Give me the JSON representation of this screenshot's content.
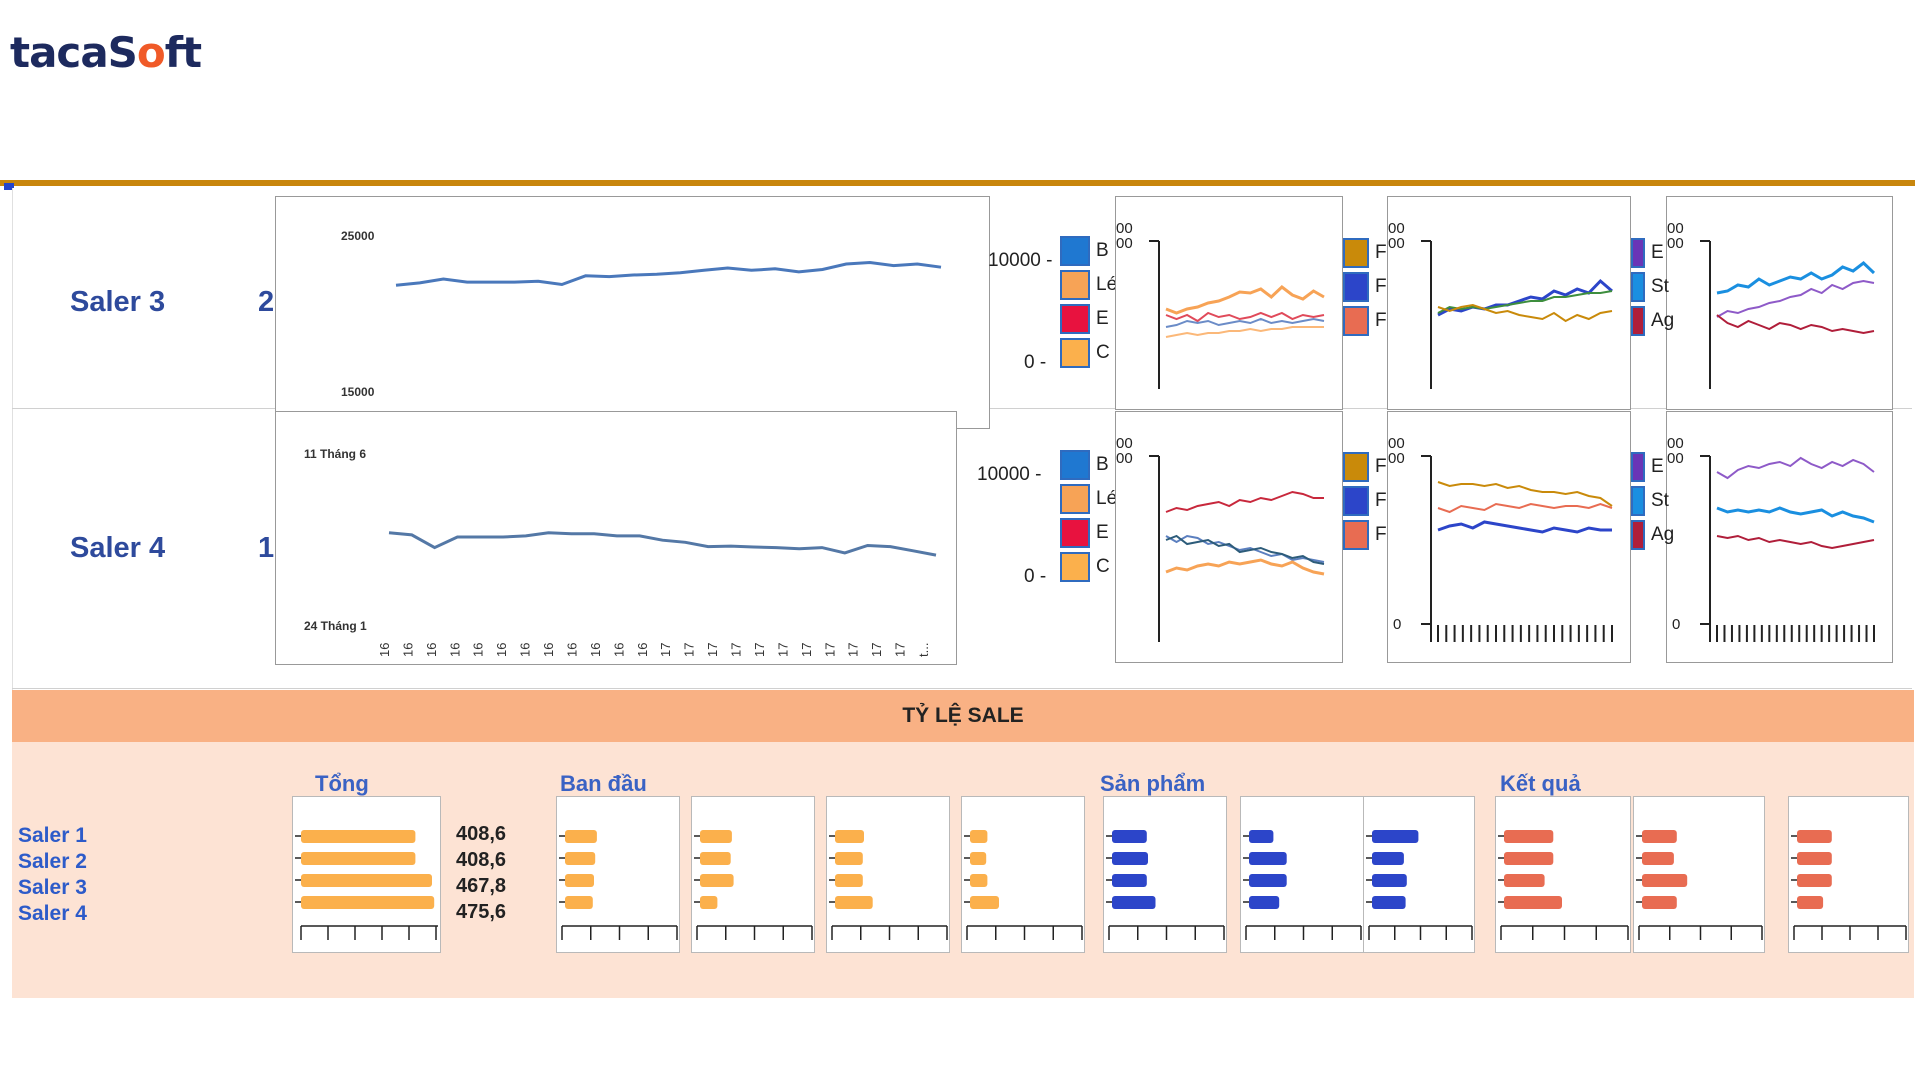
{
  "brand": {
    "name_part1": "tacaS",
    "name_o": "o",
    "name_part2": "ft"
  },
  "rows": [
    {
      "label": "Saler 3",
      "digit": "2"
    },
    {
      "label": "Saler 4",
      "digit": "1"
    }
  ],
  "line_chart_1": {
    "y_top_label": "25000",
    "y_bottom_label": "15000",
    "series": [
      21800,
      21950,
      22200,
      22000,
      22000,
      22000,
      22050,
      21850,
      22400,
      22350,
      22450,
      22500,
      22600,
      22750,
      22900,
      22750,
      22850,
      22650,
      22800,
      23150,
      23250,
      23050,
      23150,
      22950
    ]
  },
  "line_chart_2": {
    "y_top_label": "11 Tháng 6",
    "y_bottom_label": "24 Tháng 1",
    "x_ticks": [
      "16",
      "16",
      "16",
      "16",
      "16",
      "16",
      "16",
      "16",
      "16",
      "16",
      "16",
      "16",
      "17",
      "17",
      "17",
      "17",
      "17",
      "17",
      "17",
      "17",
      "17",
      "17",
      "17",
      "t..."
    ],
    "series": [
      62,
      61,
      55,
      60,
      60,
      60,
      60.5,
      62,
      61.5,
      61.5,
      60.5,
      60.5,
      58.5,
      57.5,
      55.5,
      55.7,
      55.3,
      55,
      54.5,
      55,
      52.5,
      56,
      55.5,
      53.5,
      51.5
    ]
  },
  "legend_1": {
    "axis_top": "10000 -",
    "axis_bottom": "0 -",
    "items": [
      {
        "text": "B",
        "color": "#1f78d1"
      },
      {
        "text": "Lé",
        "color": "#f7a356"
      },
      {
        "text": "E",
        "color": "#e8123f"
      },
      {
        "text": "C",
        "color": "#fbb04c"
      }
    ]
  },
  "legend_2": {
    "axis_top": "10000 -",
    "axis_bottom": "0 -",
    "items": [
      {
        "text": "B",
        "color": "#1f78d1"
      },
      {
        "text": "Lé",
        "color": "#f7a356"
      },
      {
        "text": "E",
        "color": "#e8123f"
      },
      {
        "text": "C",
        "color": "#fbb04c"
      }
    ]
  },
  "mini_legend_p": {
    "items": [
      {
        "text": "F",
        "color": "#c98a0a"
      },
      {
        "text": "F",
        "color": "#2c45c9"
      },
      {
        "text": "F",
        "color": "#e86c52"
      }
    ]
  },
  "mini_legend_e": {
    "items": [
      {
        "text": "E",
        "color": "#6a35b6"
      },
      {
        "text": "St",
        "color": "#1a8fe0"
      },
      {
        "text": "Ag",
        "color": "#b01e3a"
      }
    ]
  },
  "small_axis": {
    "top1": "00",
    "top2": "00",
    "zero": "0"
  },
  "band": {
    "title": "TỶ LỆ SALE"
  },
  "sections": {
    "tong": "Tổng",
    "ban_dau": "Ban đầu",
    "san_pham": "Sản phẩm",
    "ket_qua": "Kết quả"
  },
  "salers": [
    "Saler 1",
    "Saler 2",
    "Saler 3",
    "Saler 4"
  ],
  "tong_values": [
    "408,6",
    "408,6",
    "467,8",
    "475,6"
  ],
  "tong_bars": [
    408.6,
    408.6,
    467.8,
    475.6
  ],
  "colors": {
    "orange": "#fbb04c",
    "blue": "#2c45c9",
    "red": "#e86c52",
    "accent": "#c8860d"
  },
  "bar_groups": [
    {
      "color": "#fbb04c",
      "values": [
        0.55,
        0.52,
        0.5,
        0.48
      ]
    },
    {
      "color": "#fbb04c",
      "values": [
        0.55,
        0.53,
        0.58,
        0.3
      ]
    },
    {
      "color": "#fbb04c",
      "values": [
        0.5,
        0.48,
        0.48,
        0.65
      ]
    },
    {
      "color": "#fbb04c",
      "values": [
        0.3,
        0.28,
        0.3,
        0.5
      ]
    },
    {
      "color": "#2c45c9",
      "values": [
        0.6,
        0.62,
        0.6,
        0.75
      ]
    },
    {
      "color": "#2c45c9",
      "values": [
        0.42,
        0.65,
        0.65,
        0.52
      ]
    },
    {
      "color": "#2c45c9",
      "values": [
        0.8,
        0.55,
        0.6,
        0.58
      ]
    },
    {
      "color": "#e86c52",
      "values": [
        0.85,
        0.85,
        0.7,
        1.0
      ]
    },
    {
      "color": "#e86c52",
      "values": [
        0.6,
        0.55,
        0.78,
        0.6
      ]
    },
    {
      "color": "#e86c52",
      "values": [
        0.6,
        0.6,
        0.6,
        0.45
      ]
    }
  ]
}
